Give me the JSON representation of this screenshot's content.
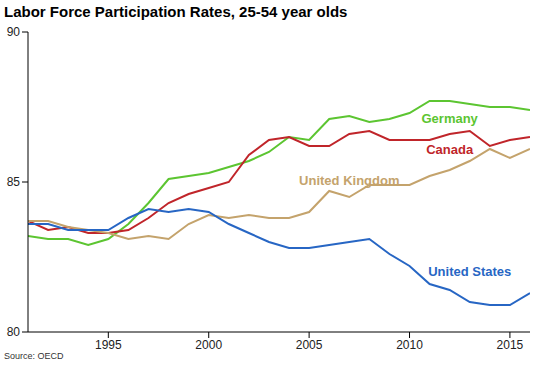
{
  "chart_data": {
    "type": "line",
    "title": "Labor Force Participation Rates, 25-54 year olds",
    "source": "Source: OECD",
    "x": [
      1991,
      1992,
      1993,
      1994,
      1995,
      1996,
      1997,
      1998,
      1999,
      2000,
      2001,
      2002,
      2003,
      2004,
      2005,
      2006,
      2007,
      2008,
      2009,
      2010,
      2011,
      2012,
      2013,
      2014,
      2015,
      2016
    ],
    "xlim": [
      1991,
      2016
    ],
    "xticks": [
      1995,
      2000,
      2005,
      2010,
      2015
    ],
    "ylim": [
      80,
      90
    ],
    "yticks": [
      80,
      85,
      90
    ],
    "grid": false,
    "series": [
      {
        "name": "Germany",
        "color": "#5cc531",
        "values": [
          83.2,
          83.1,
          83.1,
          82.9,
          83.1,
          83.6,
          84.3,
          85.1,
          85.2,
          85.3,
          85.5,
          85.7,
          86.0,
          86.5,
          86.4,
          87.1,
          87.2,
          87.0,
          87.1,
          87.3,
          87.7,
          87.7,
          87.6,
          87.5,
          87.5,
          87.4
        ]
      },
      {
        "name": "Canada",
        "color": "#c0252a",
        "values": [
          83.7,
          83.4,
          83.5,
          83.3,
          83.3,
          83.4,
          83.8,
          84.3,
          84.6,
          84.8,
          85.0,
          85.9,
          86.4,
          86.5,
          86.2,
          86.2,
          86.6,
          86.7,
          86.4,
          86.4,
          86.4,
          86.6,
          86.7,
          86.2,
          86.4,
          86.5
        ]
      },
      {
        "name": "United Kingdom",
        "color": "#c4a36c",
        "values": [
          83.7,
          83.7,
          83.5,
          83.4,
          83.3,
          83.1,
          83.2,
          83.1,
          83.6,
          83.9,
          83.8,
          83.9,
          83.8,
          83.8,
          84.0,
          84.7,
          84.5,
          84.9,
          84.9,
          84.9,
          85.2,
          85.4,
          85.7,
          86.1,
          85.8,
          86.1
        ]
      },
      {
        "name": "United States",
        "color": "#2766c4",
        "values": [
          83.6,
          83.6,
          83.4,
          83.4,
          83.4,
          83.8,
          84.1,
          84.0,
          84.1,
          84.0,
          83.6,
          83.3,
          83.0,
          82.8,
          82.8,
          82.9,
          83.0,
          83.1,
          82.6,
          82.2,
          81.6,
          81.4,
          81.0,
          80.9,
          80.9,
          81.3
        ]
      }
    ]
  }
}
